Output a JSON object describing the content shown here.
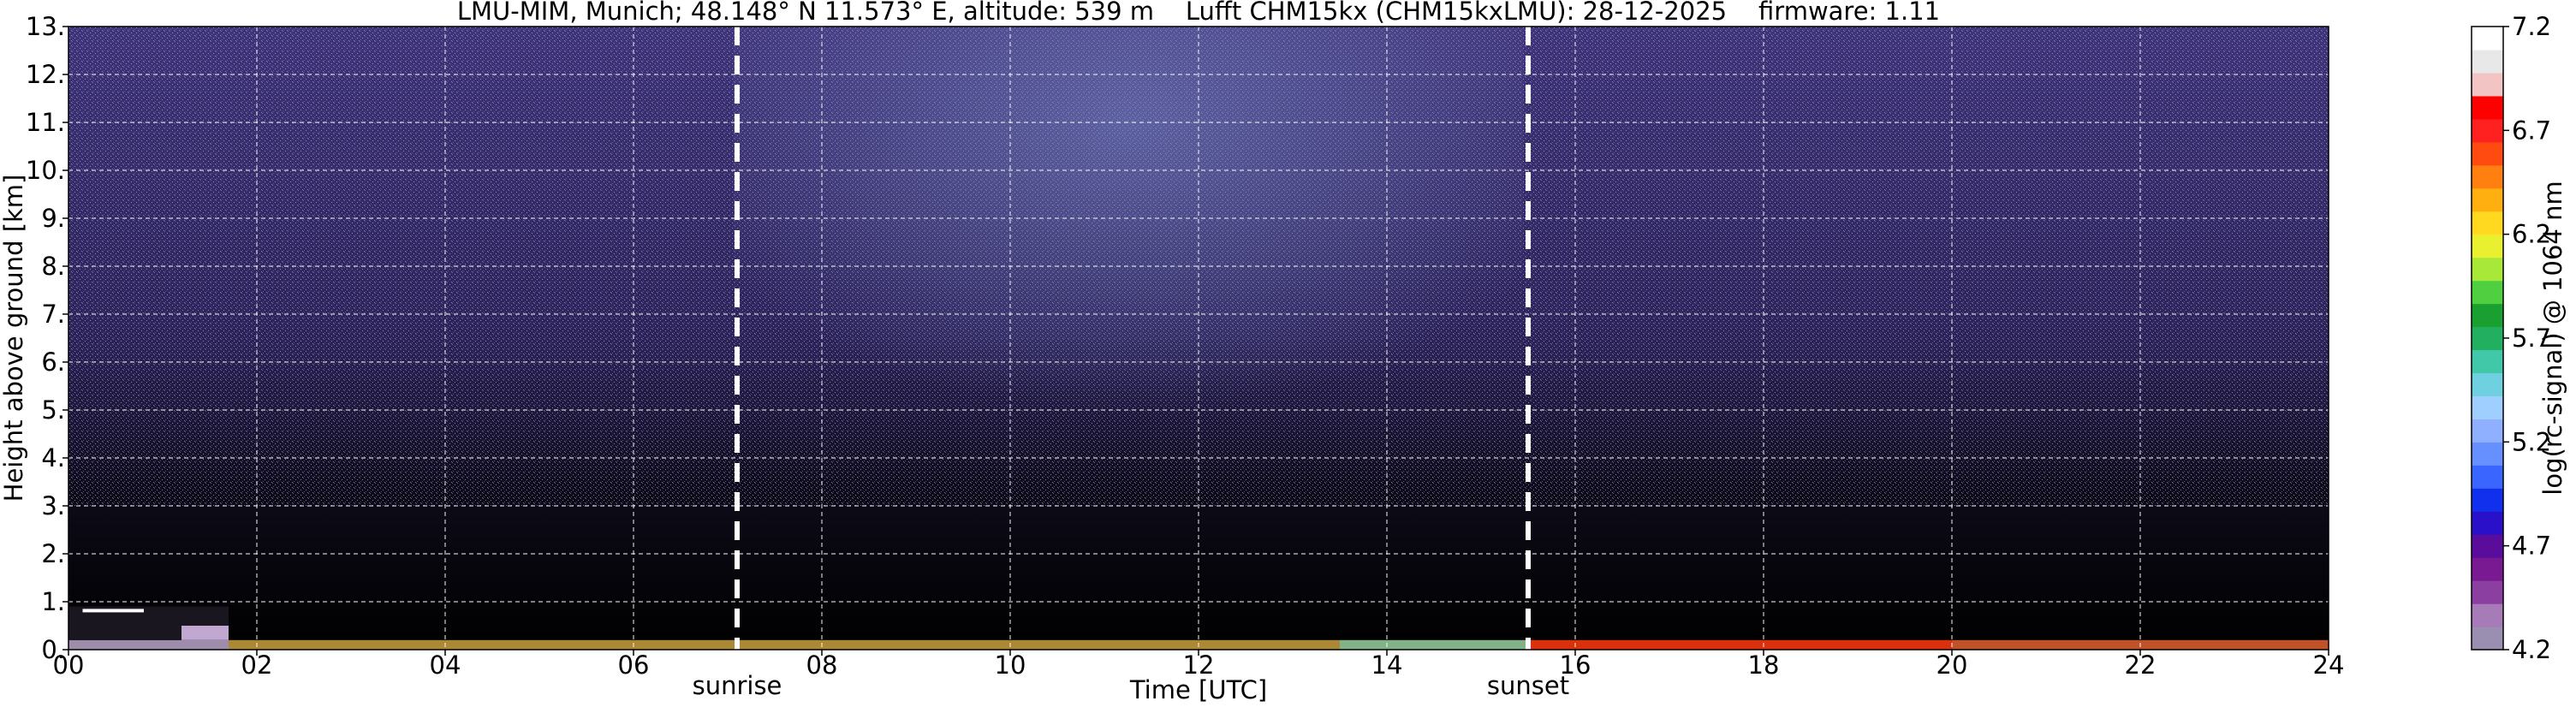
{
  "chart_data": {
    "type": "heatmap",
    "title": "LMU-MIM, Munich; 48.148° N 11.573° E, altitude: 539 m    Lufft CHM15kx (CHM15kxLMU): 28-12-2025    firmware: 1.11",
    "xlabel": "Time [UTC]",
    "ylabel": "Height above ground [km]",
    "xlim": [
      0,
      24
    ],
    "ylim": [
      0,
      13
    ],
    "x_ticks": [
      0,
      2,
      4,
      6,
      8,
      10,
      12,
      14,
      16,
      18,
      20,
      22,
      24
    ],
    "x_tick_labels": [
      "00",
      "02",
      "04",
      "06",
      "08",
      "10",
      "12",
      "14",
      "16",
      "18",
      "20",
      "22",
      "24"
    ],
    "y_ticks": [
      0,
      1,
      2,
      3,
      4,
      5,
      6,
      7,
      8,
      9,
      10,
      11,
      12,
      13
    ],
    "y_tick_labels": [
      "0.",
      "1.",
      "2.",
      "3.",
      "4.",
      "5.",
      "6.",
      "7.",
      "8.",
      "9.",
      "10.",
      "11.",
      "12.",
      "13."
    ],
    "grid": true,
    "vertical_markers": [
      {
        "x": 7.1,
        "label": "sunrise"
      },
      {
        "x": 15.5,
        "label": "sunset"
      }
    ],
    "colorbar": {
      "label": "log(rc-signal) @ 1064 nm",
      "range": [
        4.2,
        7.2
      ],
      "ticks": [
        4.2,
        4.7,
        5.2,
        5.7,
        6.2,
        6.7,
        7.2
      ],
      "tick_labels": [
        "4.2",
        "4.7",
        "5.2",
        "5.7",
        "6.2",
        "6.7",
        "7.2"
      ],
      "colors": [
        "#9a8fb0",
        "#a77ab8",
        "#8b3fa0",
        "#7a1a93",
        "#5a0c9c",
        "#2a10c8",
        "#1030ee",
        "#3a66ff",
        "#6690ff",
        "#8fb0ff",
        "#9fcfff",
        "#6fd0e0",
        "#40c8a8",
        "#22b060",
        "#1aa030",
        "#50d040",
        "#a8e838",
        "#e8f030",
        "#ffd820",
        "#ffb010",
        "#ff8010",
        "#ff4a10",
        "#ff2020",
        "#ff0000",
        "#f2c4c4",
        "#e8e8e8",
        "#ffffff"
      ]
    },
    "background_color": "#000000",
    "noise_color": "#6a5ab0"
  }
}
